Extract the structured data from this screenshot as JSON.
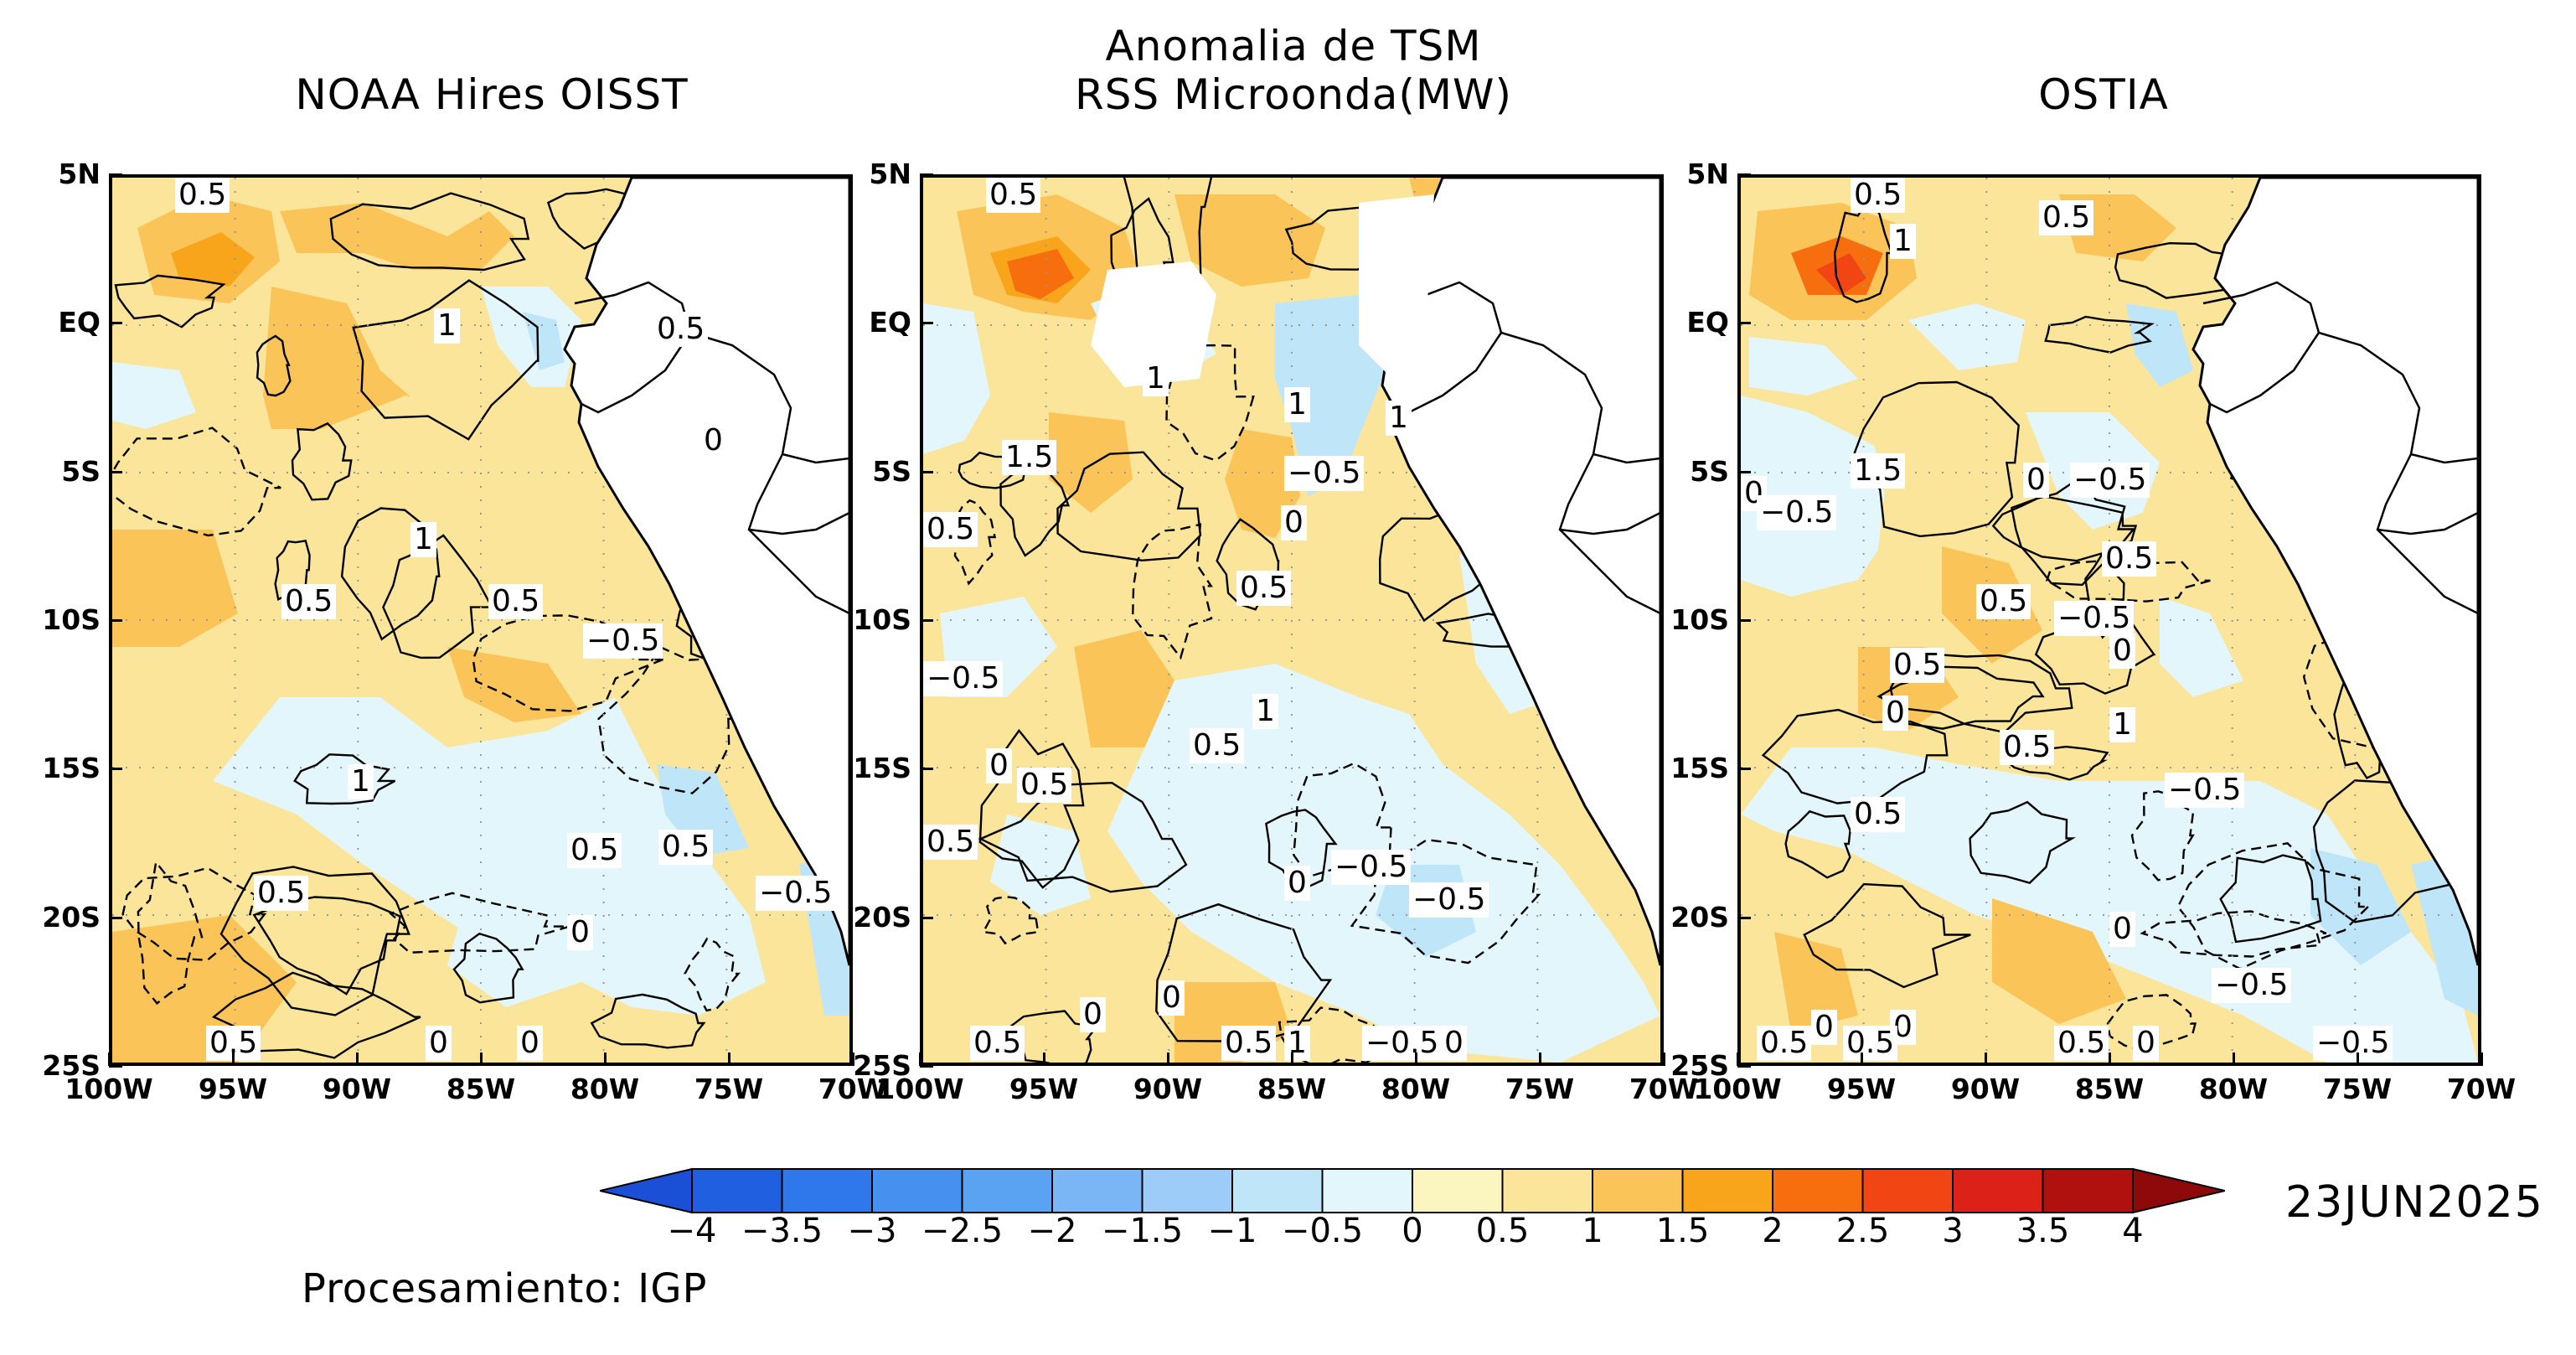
{
  "header": {
    "main_title": "Anomalia de TSM",
    "panels": [
      {
        "title": "NOAA Hires OISST"
      },
      {
        "title": "RSS Microonda(MW)"
      },
      {
        "title": "OSTIA"
      }
    ]
  },
  "axes": {
    "lat_labels": [
      "5N",
      "EQ",
      "5S",
      "10S",
      "15S",
      "20S",
      "25S"
    ],
    "lon_labels": [
      "100W",
      "95W",
      "90W",
      "85W",
      "80W",
      "75W",
      "70W"
    ]
  },
  "panel_labels": [
    [
      "0.5",
      "1",
      "0.5",
      "0",
      "1",
      "0.5",
      "0.5",
      "−0.5",
      "1",
      "0.5",
      "0.5",
      "0.5",
      "−0.5",
      "0",
      "0.5",
      "0",
      "0"
    ],
    [
      "0.5",
      "1",
      "1",
      "1",
      "1.5",
      "−0.5",
      "0.5",
      "0",
      "0.5",
      "−0.5",
      "1",
      "0.5",
      "0",
      "0.5",
      "0.5",
      "−0.5",
      "−0.5",
      "0",
      "0",
      "0",
      "−0.5",
      "0.5",
      "0.5",
      "0",
      "1"
    ],
    [
      "0.5",
      "0.5",
      "1",
      "0",
      "1.5",
      "0",
      "−0.5",
      "−0.5",
      "0.5",
      "0.5",
      "−0.5",
      "0",
      "0.5",
      "0",
      "0.5",
      "1",
      "−0.5",
      "0.5",
      "0",
      "−0.5",
      "0",
      "0",
      "0.5",
      "0.5",
      "0",
      "−0.5",
      "0.5"
    ]
  ],
  "colorbar": {
    "ticks": [
      "−4",
      "−3.5",
      "−3",
      "−2.5",
      "−2",
      "−1.5",
      "−1",
      "−0.5",
      "0",
      "0.5",
      "1",
      "1.5",
      "2",
      "2.5",
      "3",
      "3.5",
      "4"
    ],
    "colors": [
      "#1f5fe0",
      "#2f78ec",
      "#4690f0",
      "#5aa2f2",
      "#7ab6f5",
      "#9cccf7",
      "#bfe6f8",
      "#e2f6fb",
      "#fbf6c0",
      "#fbe59a",
      "#fbc459",
      "#f9a51c",
      "#f76e0e",
      "#f24514",
      "#db2118",
      "#b0100e"
    ],
    "under_color": "#1a4fd6",
    "over_color": "#8e0a0a"
  },
  "date": "23JUN2025",
  "credit": "Procesamiento: IGP"
}
